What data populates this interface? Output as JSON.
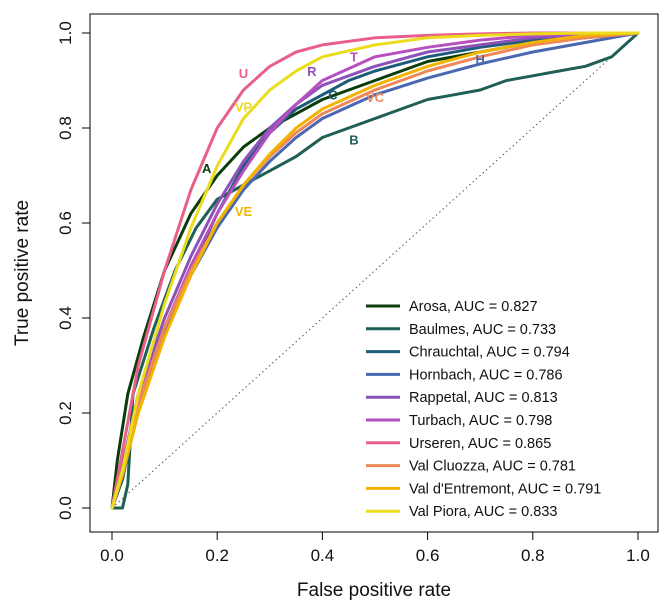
{
  "chart_data": {
    "type": "line",
    "title": "",
    "xlabel": "False positive rate",
    "ylabel": "True positive rate",
    "xlim": [
      0,
      1
    ],
    "ylim": [
      0,
      1
    ],
    "xticks": [
      "0.0",
      "0.2",
      "0.4",
      "0.6",
      "0.8",
      "1.0"
    ],
    "yticks": [
      "0.0",
      "0.2",
      "0.4",
      "0.6",
      "0.8",
      "1.0"
    ],
    "grid": false,
    "legend_position": "bottom-right",
    "reference_line": "diagonal dotted y = x",
    "series": [
      {
        "name": "Arosa, AUC = 0.827",
        "label": "A",
        "color": "#0b3d0b",
        "x": [
          0,
          0.01,
          0.03,
          0.06,
          0.1,
          0.15,
          0.2,
          0.25,
          0.3,
          0.35,
          0.4,
          0.5,
          0.6,
          0.7,
          0.8,
          0.9,
          1.0
        ],
        "y": [
          0,
          0.1,
          0.24,
          0.36,
          0.5,
          0.62,
          0.7,
          0.76,
          0.8,
          0.83,
          0.86,
          0.9,
          0.94,
          0.96,
          0.98,
          0.99,
          1.0
        ]
      },
      {
        "name": "Baulmes, AUC = 0.733",
        "label": "B",
        "color": "#1f5f55",
        "x": [
          0,
          0.02,
          0.03,
          0.04,
          0.08,
          0.12,
          0.16,
          0.2,
          0.25,
          0.3,
          0.35,
          0.4,
          0.45,
          0.5,
          0.55,
          0.6,
          0.65,
          0.7,
          0.75,
          0.8,
          0.85,
          0.9,
          0.95,
          1.0
        ],
        "y": [
          0,
          0.0,
          0.05,
          0.24,
          0.38,
          0.5,
          0.59,
          0.65,
          0.68,
          0.71,
          0.74,
          0.78,
          0.8,
          0.82,
          0.84,
          0.86,
          0.87,
          0.88,
          0.9,
          0.91,
          0.92,
          0.93,
          0.95,
          1.0
        ]
      },
      {
        "name": "Chrauchtal, AUC = 0.794",
        "label": "C",
        "color": "#1c5b7a",
        "x": [
          0,
          0.02,
          0.05,
          0.1,
          0.15,
          0.2,
          0.25,
          0.3,
          0.35,
          0.4,
          0.45,
          0.5,
          0.6,
          0.7,
          0.8,
          0.9,
          1.0
        ],
        "y": [
          0,
          0.06,
          0.22,
          0.38,
          0.5,
          0.62,
          0.72,
          0.79,
          0.84,
          0.87,
          0.9,
          0.92,
          0.95,
          0.97,
          0.985,
          0.995,
          1.0
        ]
      },
      {
        "name": "Hornbach, AUC = 0.786",
        "label": "H",
        "color": "#4a68b0",
        "x": [
          0,
          0.02,
          0.05,
          0.1,
          0.15,
          0.2,
          0.25,
          0.3,
          0.35,
          0.4,
          0.5,
          0.6,
          0.7,
          0.8,
          0.9,
          1.0
        ],
        "y": [
          0,
          0.08,
          0.22,
          0.37,
          0.49,
          0.59,
          0.67,
          0.73,
          0.78,
          0.82,
          0.87,
          0.905,
          0.935,
          0.96,
          0.98,
          1.0
        ]
      },
      {
        "name": "Rappetal, AUC = 0.813",
        "label": "R",
        "color": "#8c52b8",
        "x": [
          0,
          0.02,
          0.05,
          0.1,
          0.15,
          0.2,
          0.25,
          0.3,
          0.35,
          0.4,
          0.5,
          0.6,
          0.7,
          0.8,
          0.9,
          1.0
        ],
        "y": [
          0,
          0.09,
          0.24,
          0.4,
          0.53,
          0.64,
          0.73,
          0.8,
          0.85,
          0.89,
          0.93,
          0.96,
          0.975,
          0.99,
          0.995,
          1.0
        ]
      },
      {
        "name": "Turbach, AUC = 0.798",
        "label": "T",
        "color": "#b84fc0",
        "x": [
          0,
          0.02,
          0.05,
          0.1,
          0.15,
          0.2,
          0.25,
          0.3,
          0.35,
          0.4,
          0.5,
          0.6,
          0.7,
          0.8,
          0.9,
          1.0
        ],
        "y": [
          0,
          0.08,
          0.22,
          0.38,
          0.51,
          0.62,
          0.71,
          0.79,
          0.85,
          0.9,
          0.95,
          0.97,
          0.985,
          0.995,
          0.998,
          1.0
        ]
      },
      {
        "name": "Urseren, AUC = 0.865",
        "label": "U",
        "color": "#e8608a",
        "x": [
          0,
          0.02,
          0.05,
          0.1,
          0.15,
          0.2,
          0.25,
          0.3,
          0.35,
          0.4,
          0.5,
          0.6,
          0.7,
          0.8,
          0.9,
          1.0
        ],
        "y": [
          0,
          0.12,
          0.3,
          0.5,
          0.67,
          0.8,
          0.88,
          0.93,
          0.96,
          0.975,
          0.99,
          0.995,
          0.998,
          1.0,
          1.0,
          1.0
        ]
      },
      {
        "name": "Val Cluozza, AUC = 0.781",
        "label": "VC",
        "color": "#f0875a",
        "x": [
          0,
          0.02,
          0.05,
          0.1,
          0.15,
          0.2,
          0.25,
          0.3,
          0.35,
          0.4,
          0.5,
          0.6,
          0.7,
          0.8,
          0.9,
          1.0
        ],
        "y": [
          0,
          0.08,
          0.22,
          0.38,
          0.5,
          0.6,
          0.68,
          0.74,
          0.79,
          0.83,
          0.88,
          0.92,
          0.95,
          0.975,
          0.99,
          1.0
        ]
      },
      {
        "name": "Val d'Entremont, AUC = 0.791",
        "label": "VE",
        "color": "#f2b400",
        "x": [
          0,
          0.02,
          0.05,
          0.1,
          0.15,
          0.2,
          0.25,
          0.3,
          0.35,
          0.4,
          0.5,
          0.6,
          0.7,
          0.8,
          0.9,
          1.0
        ],
        "y": [
          0,
          0.07,
          0.2,
          0.36,
          0.49,
          0.6,
          0.68,
          0.745,
          0.8,
          0.84,
          0.89,
          0.93,
          0.96,
          0.98,
          0.995,
          1.0
        ]
      },
      {
        "name": "Val Piora, AUC = 0.833",
        "label": "VP",
        "color": "#ecdc1e",
        "x": [
          0,
          0.02,
          0.05,
          0.1,
          0.15,
          0.2,
          0.25,
          0.3,
          0.35,
          0.4,
          0.5,
          0.6,
          0.7,
          0.8,
          0.9,
          1.0
        ],
        "y": [
          0,
          0.08,
          0.24,
          0.43,
          0.59,
          0.72,
          0.82,
          0.88,
          0.92,
          0.95,
          0.975,
          0.99,
          0.995,
          0.998,
          1.0,
          1.0
        ]
      }
    ],
    "curve_labels": [
      {
        "text": "A",
        "x": 0.18,
        "y": 0.705
      },
      {
        "text": "B",
        "x": 0.46,
        "y": 0.765
      },
      {
        "text": "C",
        "x": 0.42,
        "y": 0.86
      },
      {
        "text": "H",
        "x": 0.7,
        "y": 0.935
      },
      {
        "text": "R",
        "x": 0.38,
        "y": 0.91
      },
      {
        "text": "T",
        "x": 0.46,
        "y": 0.94
      },
      {
        "text": "U",
        "x": 0.25,
        "y": 0.905
      },
      {
        "text": "VC",
        "x": 0.5,
        "y": 0.855
      },
      {
        "text": "VE",
        "x": 0.25,
        "y": 0.615
      },
      {
        "text": "VP",
        "x": 0.25,
        "y": 0.835
      }
    ]
  }
}
